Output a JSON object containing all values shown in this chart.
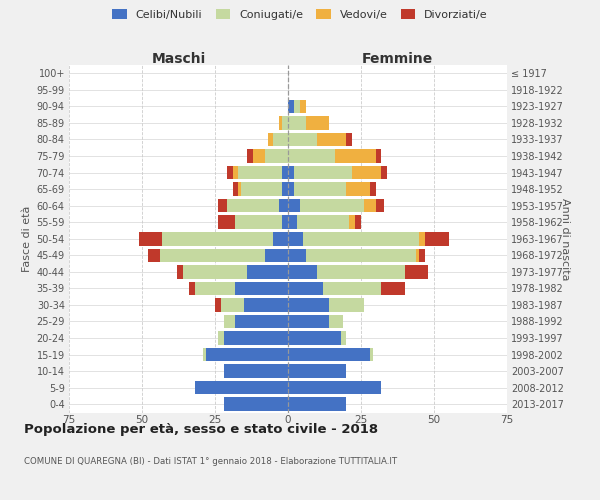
{
  "age_groups": [
    "0-4",
    "5-9",
    "10-14",
    "15-19",
    "20-24",
    "25-29",
    "30-34",
    "35-39",
    "40-44",
    "45-49",
    "50-54",
    "55-59",
    "60-64",
    "65-69",
    "70-74",
    "75-79",
    "80-84",
    "85-89",
    "90-94",
    "95-99",
    "100+"
  ],
  "birth_years": [
    "2013-2017",
    "2008-2012",
    "2003-2007",
    "1998-2002",
    "1993-1997",
    "1988-1992",
    "1983-1987",
    "1978-1982",
    "1973-1977",
    "1968-1972",
    "1963-1967",
    "1958-1962",
    "1953-1957",
    "1948-1952",
    "1943-1947",
    "1938-1942",
    "1933-1937",
    "1928-1932",
    "1923-1927",
    "1918-1922",
    "≤ 1917"
  ],
  "maschi_celibi": [
    22,
    32,
    22,
    28,
    22,
    18,
    15,
    18,
    14,
    8,
    5,
    2,
    3,
    2,
    2,
    0,
    0,
    0,
    0,
    0,
    0
  ],
  "maschi_coniugati": [
    0,
    0,
    0,
    1,
    2,
    4,
    8,
    14,
    22,
    36,
    38,
    16,
    18,
    14,
    15,
    8,
    5,
    2,
    0,
    0,
    0
  ],
  "maschi_vedovi": [
    0,
    0,
    0,
    0,
    0,
    0,
    0,
    0,
    0,
    0,
    0,
    0,
    0,
    1,
    2,
    4,
    2,
    1,
    0,
    0,
    0
  ],
  "maschi_divorziati": [
    0,
    0,
    0,
    0,
    0,
    0,
    2,
    2,
    2,
    4,
    8,
    6,
    3,
    2,
    2,
    2,
    0,
    0,
    0,
    0,
    0
  ],
  "femmine_celibi": [
    20,
    32,
    20,
    28,
    18,
    14,
    14,
    12,
    10,
    6,
    5,
    3,
    4,
    2,
    2,
    0,
    0,
    0,
    2,
    0,
    0
  ],
  "femmine_coniugati": [
    0,
    0,
    0,
    1,
    2,
    5,
    12,
    20,
    30,
    38,
    40,
    18,
    22,
    18,
    20,
    16,
    10,
    6,
    2,
    0,
    0
  ],
  "femmine_vedovi": [
    0,
    0,
    0,
    0,
    0,
    0,
    0,
    0,
    0,
    1,
    2,
    2,
    4,
    8,
    10,
    14,
    10,
    8,
    2,
    0,
    0
  ],
  "femmine_divorziati": [
    0,
    0,
    0,
    0,
    0,
    0,
    0,
    8,
    8,
    2,
    8,
    2,
    3,
    2,
    2,
    2,
    2,
    0,
    0,
    0,
    0
  ],
  "color_celibi": "#4472c4",
  "color_coniugati": "#c5d9a0",
  "color_vedovi": "#f0b040",
  "color_divorziati": "#c0392b",
  "title": "Popolazione per età, sesso e stato civile - 2018",
  "subtitle": "COMUNE DI QUAREGNA (BI) - Dati ISTAT 1° gennaio 2018 - Elaborazione TUTTITALIA.IT",
  "xlabel_maschi": "Maschi",
  "xlabel_femmine": "Femmine",
  "ylabel_left": "Fasce di età",
  "ylabel_right": "Anni di nascita",
  "xlim": 75,
  "bg_color": "#f0f0f0",
  "plot_bg": "#ffffff"
}
